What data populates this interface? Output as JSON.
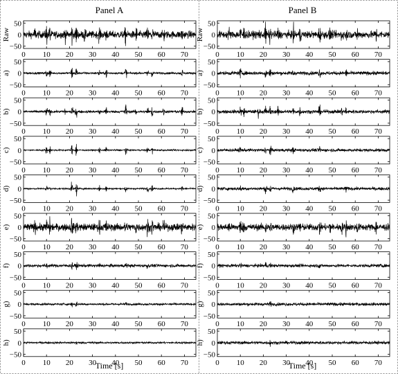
{
  "chart_data": [
    {
      "type": "line",
      "title": "Panel A",
      "xlabel": "Time [s]",
      "xlim": [
        0,
        75
      ],
      "xticks": [
        0,
        10,
        20,
        30,
        40,
        50,
        60,
        70
      ],
      "ylim": [
        -60,
        60
      ],
      "yticks": [
        50,
        0,
        -50
      ],
      "series": [
        {
          "name": "Raw",
          "noise": 14,
          "bursts": [
            [
              5,
              22
            ],
            [
              10,
              34
            ],
            [
              11.5,
              30
            ],
            [
              18,
              22
            ],
            [
              21,
              40
            ],
            [
              23,
              34
            ],
            [
              26.5,
              24
            ],
            [
              33,
              26
            ],
            [
              36,
              24
            ],
            [
              44.5,
              34
            ],
            [
              49,
              26
            ],
            [
              54,
              24
            ],
            [
              56,
              30
            ],
            [
              61,
              24
            ],
            [
              69,
              28
            ]
          ]
        },
        {
          "name": "a)",
          "noise": 4,
          "bursts": [
            [
              10,
              22
            ],
            [
              11.5,
              18
            ],
            [
              21,
              30
            ],
            [
              23,
              34
            ],
            [
              33,
              16
            ],
            [
              36,
              18
            ],
            [
              44.5,
              26
            ],
            [
              54,
              20
            ],
            [
              56,
              16
            ],
            [
              69,
              14
            ]
          ]
        },
        {
          "name": "b)",
          "noise": 5,
          "bursts": [
            [
              10,
              20
            ],
            [
              11.5,
              16
            ],
            [
              18,
              14
            ],
            [
              21,
              30
            ],
            [
              23,
              26
            ],
            [
              33,
              18
            ],
            [
              36,
              22
            ],
            [
              44.5,
              34
            ],
            [
              49,
              18
            ],
            [
              54,
              22
            ],
            [
              56,
              26
            ],
            [
              61,
              16
            ],
            [
              69,
              18
            ]
          ]
        },
        {
          "name": "c)",
          "noise": 3,
          "bursts": [
            [
              10,
              16
            ],
            [
              11.5,
              14
            ],
            [
              21,
              22
            ],
            [
              23,
              30
            ],
            [
              33,
              12
            ],
            [
              36,
              16
            ],
            [
              44.5,
              22
            ],
            [
              54,
              12
            ],
            [
              56,
              14
            ]
          ]
        },
        {
          "name": "d)",
          "noise": 3,
          "bursts": [
            [
              10,
              18
            ],
            [
              11.5,
              14
            ],
            [
              21,
              24
            ],
            [
              23,
              28
            ],
            [
              33,
              14
            ],
            [
              36,
              16
            ],
            [
              44.5,
              22
            ],
            [
              54,
              14
            ],
            [
              56,
              14
            ],
            [
              69,
              10
            ]
          ]
        },
        {
          "name": "e)",
          "noise": 14,
          "bursts": [
            [
              5,
              18
            ],
            [
              10,
              30
            ],
            [
              11.5,
              24
            ],
            [
              21,
              34
            ],
            [
              23,
              30
            ],
            [
              33,
              24
            ],
            [
              36,
              26
            ],
            [
              44.5,
              30
            ],
            [
              49,
              22
            ],
            [
              54,
              26
            ],
            [
              56,
              26
            ],
            [
              61,
              22
            ],
            [
              69,
              24
            ]
          ]
        },
        {
          "name": "f)",
          "noise": 6,
          "bursts": [
            [
              10,
              12
            ],
            [
              21,
              14
            ],
            [
              23,
              14
            ],
            [
              33,
              10
            ],
            [
              44.5,
              12
            ],
            [
              54,
              10
            ]
          ]
        },
        {
          "name": "g)",
          "noise": 4,
          "bursts": [
            [
              21,
              10
            ],
            [
              23,
              12
            ],
            [
              44.5,
              8
            ]
          ]
        },
        {
          "name": "h)",
          "noise": 4,
          "bursts": [
            [
              23,
              8
            ]
          ]
        }
      ]
    },
    {
      "type": "line",
      "title": "Panel B",
      "xlabel": "Time [s]",
      "xlim": [
        0,
        75
      ],
      "xticks": [
        0,
        10,
        20,
        30,
        40,
        50,
        60,
        70
      ],
      "ylim": [
        -60,
        60
      ],
      "yticks": [
        50,
        0,
        -50
      ],
      "series": [
        {
          "name": "Raw",
          "noise": 14,
          "bursts": [
            [
              5,
              22
            ],
            [
              10,
              34
            ],
            [
              11.5,
              30
            ],
            [
              18,
              22
            ],
            [
              21,
              40
            ],
            [
              23,
              34
            ],
            [
              26.5,
              24
            ],
            [
              33,
              26
            ],
            [
              36,
              24
            ],
            [
              44.5,
              34
            ],
            [
              49,
              26
            ],
            [
              54,
              24
            ],
            [
              56,
              30
            ],
            [
              61,
              24
            ],
            [
              69,
              28
            ]
          ]
        },
        {
          "name": "a)",
          "noise": 7,
          "bursts": [
            [
              10,
              18
            ],
            [
              21,
              22
            ],
            [
              23,
              20
            ],
            [
              33,
              14
            ],
            [
              44.5,
              18
            ],
            [
              56,
              14
            ]
          ]
        },
        {
          "name": "b)",
          "noise": 7,
          "bursts": [
            [
              10,
              20
            ],
            [
              11.5,
              16
            ],
            [
              18,
              18
            ],
            [
              21,
              22
            ],
            [
              23,
              20
            ],
            [
              26.5,
              16
            ],
            [
              33,
              16
            ],
            [
              36,
              16
            ],
            [
              44.5,
              20
            ],
            [
              54,
              14
            ],
            [
              56,
              16
            ]
          ]
        },
        {
          "name": "c)",
          "noise": 6,
          "bursts": [
            [
              10,
              14
            ],
            [
              21,
              18
            ],
            [
              23,
              22
            ],
            [
              33,
              12
            ],
            [
              44.5,
              14
            ]
          ]
        },
        {
          "name": "d)",
          "noise": 6,
          "bursts": [
            [
              10,
              14
            ],
            [
              21,
              18
            ],
            [
              23,
              20
            ],
            [
              33,
              14
            ],
            [
              44.5,
              16
            ],
            [
              56,
              12
            ]
          ]
        },
        {
          "name": "e)",
          "noise": 13,
          "bursts": [
            [
              5,
              18
            ],
            [
              10,
              28
            ],
            [
              11.5,
              24
            ],
            [
              21,
              34
            ],
            [
              23,
              30
            ],
            [
              33,
              26
            ],
            [
              36,
              24
            ],
            [
              44.5,
              30
            ],
            [
              49,
              22
            ],
            [
              54,
              24
            ],
            [
              56,
              26
            ],
            [
              61,
              22
            ],
            [
              69,
              24
            ]
          ]
        },
        {
          "name": "f)",
          "noise": 6,
          "bursts": [
            [
              10,
              10
            ],
            [
              21,
              12
            ],
            [
              23,
              12
            ],
            [
              44.5,
              10
            ]
          ]
        },
        {
          "name": "g)",
          "noise": 6,
          "bursts": [
            [
              23,
              10
            ]
          ]
        },
        {
          "name": "h)",
          "noise": 6,
          "bursts": [
            [
              23,
              10
            ]
          ]
        }
      ]
    }
  ]
}
